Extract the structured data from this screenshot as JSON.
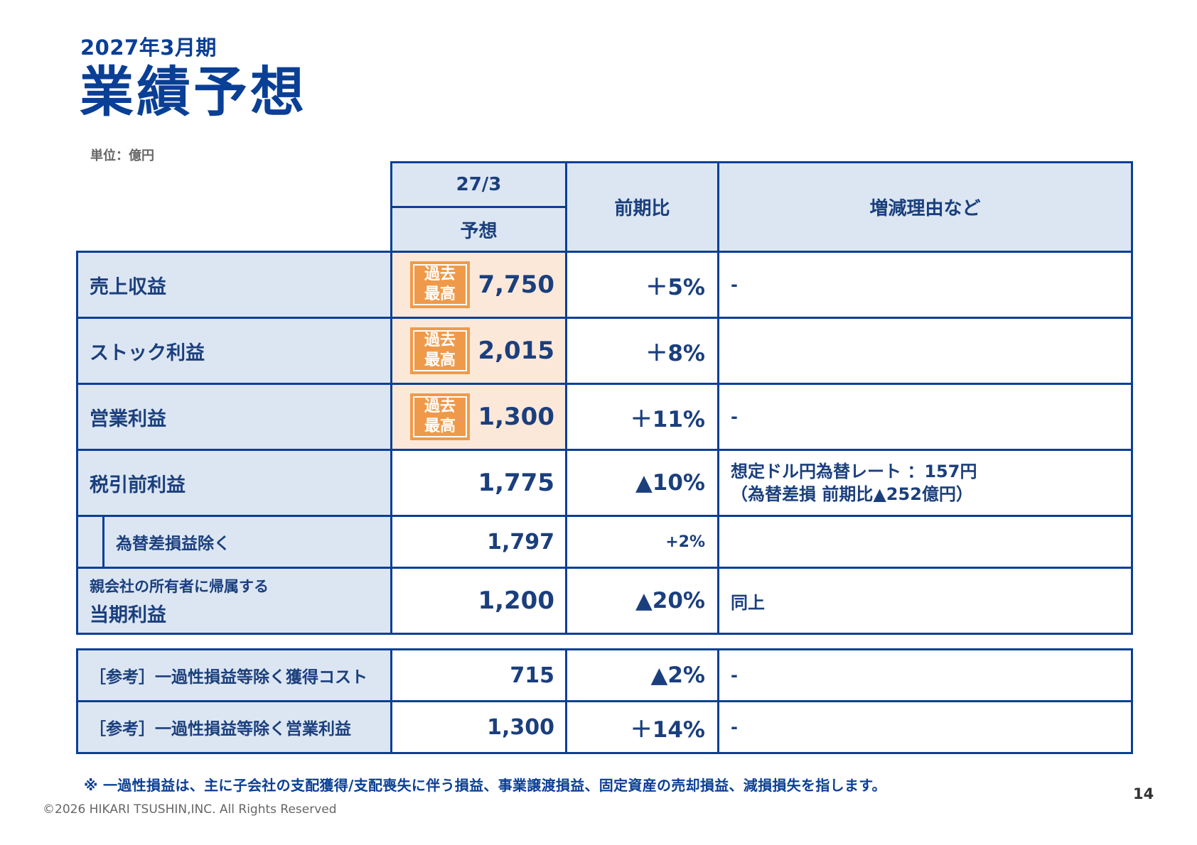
{
  "header": {
    "period": "2027年3月期",
    "title": "業績予想",
    "unit": "単位：億円"
  },
  "table_head": {
    "col1_top": "27/3",
    "col1_bottom": "予想",
    "col2": "前期比",
    "col3": "増減理由など"
  },
  "badge": {
    "line1": "過去",
    "line2": "最高"
  },
  "rows": [
    {
      "label": "売上収益",
      "value": "7,750",
      "ratio": "＋5%",
      "reason": "-"
    },
    {
      "label": "ストック利益",
      "value": "2,015",
      "ratio": "＋8%",
      "reason": ""
    },
    {
      "label": "営業利益",
      "value": "1,300",
      "ratio": "＋11%",
      "reason": "-"
    },
    {
      "label": "税引前利益",
      "value": "1,775",
      "ratio": "▲10%",
      "reason_line1": "想定ドル円為替レート ：157円",
      "reason_line2": "（為替差損 前期比▲252億円）"
    },
    {
      "label": "為替差損益除く",
      "value": "1,797",
      "ratio": "+2%",
      "reason": ""
    },
    {
      "label_line1": "親会社の所有者に帰属する",
      "label_line2": "当期利益",
      "value": "1,200",
      "ratio": "▲20%",
      "reason": "同上"
    }
  ],
  "reference_rows": [
    {
      "label": "［参考］一過性損益等除く獲得コスト",
      "value": "715",
      "ratio": "▲2%",
      "reason": "-"
    },
    {
      "label": "［参考］一過性損益等除く営業利益",
      "value": "1,300",
      "ratio": "＋14%",
      "reason": "-"
    }
  ],
  "footnote": "※ 一過性損益は、主に子会社の支配獲得/支配喪失に伴う損益、事業譲渡損益、固定資産の売却損益、減損損失を指します。",
  "page_number": "14",
  "copyright": "©2026 HIKARI TSUSHIN,INC. All Rights Reserved",
  "colors": {
    "primary": "#0a3f96",
    "header_bg": "#dce6f2",
    "highlight_bg": "#fce8d9",
    "badge": "#ef9a4a"
  }
}
